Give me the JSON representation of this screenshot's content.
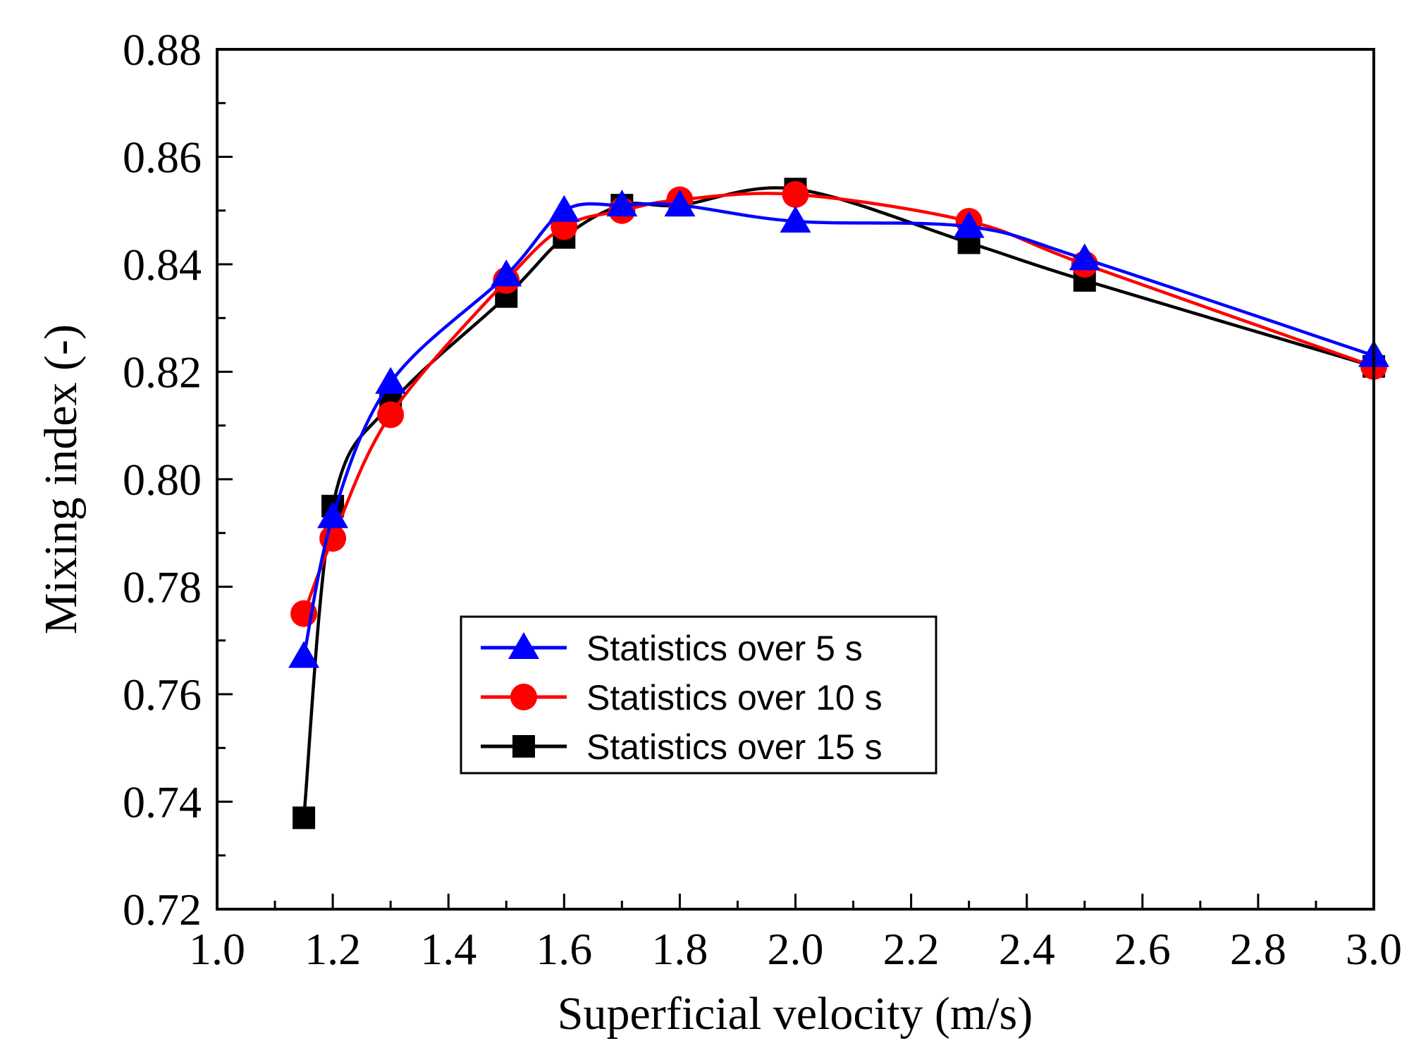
{
  "chart_data": {
    "type": "line",
    "title": "",
    "xlabel": "Superficial velocity (m/s)",
    "ylabel": "Mixing index (-)",
    "xlim": [
      1.0,
      3.0
    ],
    "ylim": [
      0.72,
      0.88
    ],
    "x_ticks": [
      "1.0",
      "1.2",
      "1.4",
      "1.6",
      "1.8",
      "2.0",
      "2.2",
      "2.4",
      "2.6",
      "2.8",
      "3.0"
    ],
    "y_ticks": [
      "0.72",
      "0.74",
      "0.76",
      "0.78",
      "0.80",
      "0.82",
      "0.84",
      "0.86",
      "0.88"
    ],
    "grid": false,
    "legend_position": "center",
    "x": [
      1.15,
      1.2,
      1.3,
      1.5,
      1.6,
      1.7,
      1.8,
      2.0,
      2.3,
      2.5,
      3.0
    ],
    "series": [
      {
        "name": "Statistics over 15 s",
        "color": "#000000",
        "marker": "square",
        "values": [
          0.737,
          0.795,
          0.814,
          0.834,
          0.845,
          0.851,
          0.851,
          0.854,
          0.844,
          0.837,
          0.821
        ]
      },
      {
        "name": "Statistics over 10 s",
        "color": "#ff0000",
        "marker": "circle",
        "values": [
          0.775,
          0.789,
          0.812,
          0.837,
          0.847,
          0.85,
          0.852,
          0.853,
          0.848,
          0.84,
          0.821
        ]
      },
      {
        "name": "Statistics over 5 s",
        "color": "#0000ff",
        "marker": "triangle",
        "values": [
          0.767,
          0.793,
          0.818,
          0.838,
          0.85,
          0.851,
          0.851,
          0.848,
          0.847,
          0.841,
          0.823
        ]
      }
    ],
    "legend_order": [
      2,
      1,
      0
    ]
  }
}
